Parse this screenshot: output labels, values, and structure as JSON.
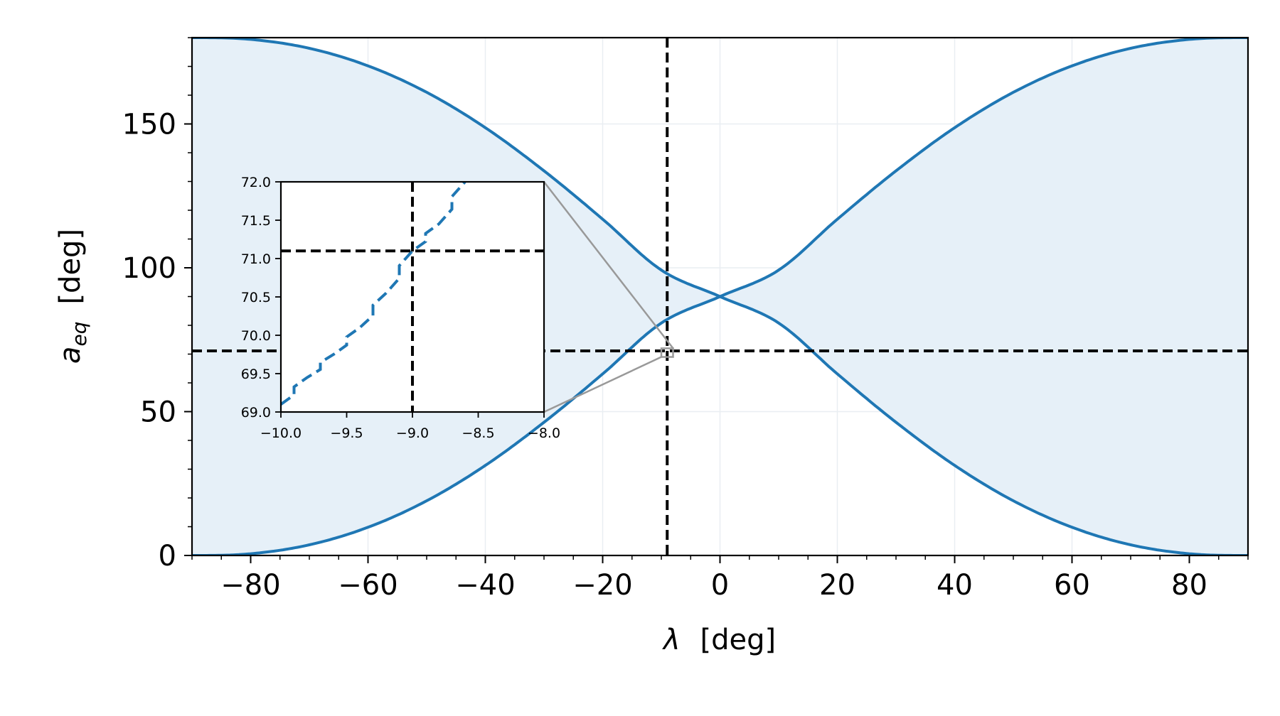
{
  "chart_data": [
    {
      "type": "line",
      "role": "main",
      "xlabel_symbol": "λ",
      "xlabel_unit": "[deg]",
      "ylabel_symbol": "a",
      "ylabel_subscript": "eq",
      "ylabel_unit": "[deg]",
      "xlim": [
        -90,
        90
      ],
      "ylim": [
        0,
        180
      ],
      "xticks": [
        -80,
        -60,
        -40,
        -20,
        0,
        20,
        40,
        60,
        80
      ],
      "xtick_labels": [
        "−80",
        "−60",
        "−40",
        "−20",
        "0",
        "20",
        "40",
        "60",
        "80"
      ],
      "yticks": [
        0,
        50,
        100,
        150
      ],
      "ytick_labels": [
        "0",
        "50",
        "100",
        "150"
      ],
      "grid": true,
      "series": [
        {
          "x": [
            -90,
            -80,
            -70,
            -60,
            -50,
            -40,
            -30,
            -20,
            -10,
            0,
            10,
            20,
            30,
            40,
            50,
            60,
            70,
            80,
            90
          ],
          "values": [
            180,
            179.4,
            176.3,
            170.2,
            161.0,
            148.7,
            133.7,
            116.9,
            99.2,
            90,
            80.8,
            63.1,
            46.3,
            31.3,
            19.0,
            9.8,
            3.7,
            0.6,
            0
          ]
        },
        {
          "x": [
            -90,
            -80,
            -70,
            -60,
            -50,
            -40,
            -30,
            -20,
            -10,
            0,
            10,
            20,
            30,
            40,
            50,
            60,
            70,
            80,
            90
          ],
          "values": [
            0,
            0.6,
            3.7,
            9.8,
            19.0,
            31.3,
            46.3,
            63.1,
            80.8,
            90,
            99.2,
            116.9,
            133.7,
            148.7,
            161.0,
            170.2,
            176.3,
            179.4,
            180
          ]
        }
      ],
      "shaded_region": "between curves",
      "reference_lines": {
        "vertical_x": -9,
        "horizontal_y": 71.1
      },
      "colors": {
        "line": "#1f77b4",
        "fill": "#e6f0f8",
        "reference": "#000000",
        "connector": "#999999"
      }
    },
    {
      "type": "line",
      "role": "inset",
      "xlim": [
        -10,
        -8
      ],
      "ylim": [
        69,
        72
      ],
      "xticks": [
        -10,
        -9.5,
        -9,
        -8.5,
        -8
      ],
      "xtick_labels": [
        "−10.0",
        "−9.5",
        "−9.0",
        "−8.5",
        "−8.0"
      ],
      "yticks": [
        69,
        69.5,
        70,
        70.5,
        71,
        71.5,
        72
      ],
      "ytick_labels": [
        "69.0",
        "69.5",
        "70.0",
        "70.5",
        "71.0",
        "71.5",
        "72.0"
      ],
      "series": [
        {
          "x": [
            -10.0,
            -9.8,
            -9.6,
            -9.4,
            -9.2,
            -9.0,
            -8.8,
            -8.6
          ],
          "values": [
            69.1,
            69.45,
            69.75,
            70.1,
            70.55,
            71.1,
            71.45,
            72.0
          ]
        }
      ],
      "reference_lines": {
        "vertical_x": -9,
        "horizontal_y": 71.1
      }
    }
  ]
}
